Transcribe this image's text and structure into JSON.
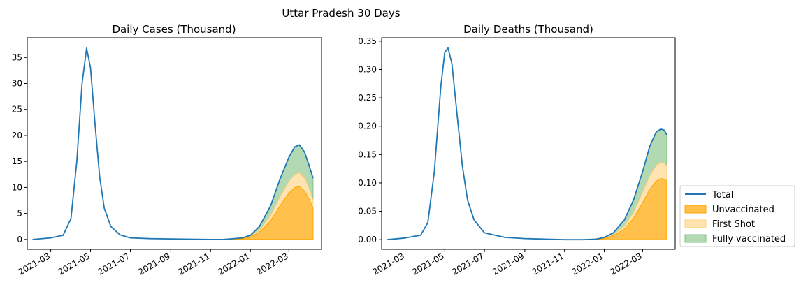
{
  "figure": {
    "suptitle": "Uttar Pradesh 30 Days"
  },
  "colors": {
    "total": "#1f77b4",
    "unvaccinated": "#ffa500",
    "first_shot": "#ffd27f",
    "fully_vaccinated": "#7fbf7f"
  },
  "legend": {
    "placement": "right, lower middle",
    "items": [
      {
        "key": "total",
        "label": "Total"
      },
      {
        "key": "unvaccinated",
        "label": "Unvaccinated"
      },
      {
        "key": "first_shot",
        "label": "First Shot"
      },
      {
        "key": "fully_vaccinated",
        "label": "Fully vaccinated"
      }
    ]
  },
  "chart_data": [
    {
      "type": "area",
      "title": "Daily Cases (Thousand)",
      "x_ticks": [
        "2021-03",
        "2021-05",
        "2021-07",
        "2021-09",
        "2021-11",
        "2022-01",
        "2022-03"
      ],
      "y_ticks": [
        "0",
        "5",
        "10",
        "15",
        "20",
        "25",
        "30",
        "35"
      ],
      "ylim": [
        -1.9,
        38.8
      ],
      "xlim": [
        "2021-01-24",
        "2022-04-20"
      ],
      "grid": false,
      "series": [
        {
          "key": "total",
          "x": [
            "2021-02-01",
            "2021-03-01",
            "2021-03-20",
            "2021-04-01",
            "2021-04-10",
            "2021-04-18",
            "2021-04-25",
            "2021-05-01",
            "2021-05-08",
            "2021-05-15",
            "2021-05-22",
            "2021-06-01",
            "2021-06-15",
            "2021-07-01",
            "2021-08-01",
            "2021-09-01",
            "2021-10-01",
            "2021-11-01",
            "2021-11-20",
            "2021-12-01",
            "2021-12-20",
            "2022-01-01",
            "2022-01-15",
            "2022-02-01",
            "2022-02-15",
            "2022-03-01",
            "2022-03-10",
            "2022-03-17",
            "2022-03-25",
            "2022-04-01",
            "2022-04-07"
          ],
          "y": [
            0,
            0.3,
            0.8,
            4,
            15,
            30,
            36.8,
            33,
            22,
            12,
            6,
            2.5,
            0.9,
            0.3,
            0.15,
            0.1,
            0.05,
            0,
            0,
            0.1,
            0.3,
            0.8,
            2.5,
            6.5,
            11.5,
            15.8,
            17.8,
            18.2,
            16.8,
            14.2,
            11.8
          ]
        },
        {
          "key": "unvaccinated",
          "x": [
            "2021-11-20",
            "2021-12-20",
            "2022-01-01",
            "2022-01-15",
            "2022-02-01",
            "2022-02-15",
            "2022-03-01",
            "2022-03-10",
            "2022-03-17",
            "2022-03-25",
            "2022-04-01",
            "2022-04-07"
          ],
          "y": [
            0,
            0.15,
            0.45,
            1.4,
            3.6,
            6.4,
            8.9,
            10.0,
            10.2,
            9.3,
            7.8,
            6.0
          ]
        },
        {
          "key": "first_shot",
          "x": [
            "2021-11-20",
            "2021-12-20",
            "2022-01-01",
            "2022-01-15",
            "2022-02-01",
            "2022-02-15",
            "2022-03-01",
            "2022-03-10",
            "2022-03-17",
            "2022-03-25",
            "2022-04-01",
            "2022-04-07"
          ],
          "y": [
            0,
            0.2,
            0.55,
            1.75,
            4.6,
            8.1,
            11.2,
            12.5,
            12.8,
            11.8,
            9.9,
            7.6
          ]
        },
        {
          "key": "fully_vaccinated",
          "x": [
            "2021-11-20",
            "2021-12-20",
            "2022-01-01",
            "2022-01-15",
            "2022-02-01",
            "2022-02-15",
            "2022-03-01",
            "2022-03-10",
            "2022-03-17",
            "2022-03-25",
            "2022-04-01",
            "2022-04-07"
          ],
          "y": [
            0,
            0.3,
            0.8,
            2.5,
            6.5,
            11.5,
            15.8,
            17.8,
            18.2,
            16.8,
            14.2,
            11.8
          ]
        }
      ]
    },
    {
      "type": "area",
      "title": "Daily Deaths (Thousand)",
      "x_ticks": [
        "2021-03",
        "2021-05",
        "2021-07",
        "2021-09",
        "2021-11",
        "2022-01",
        "2022-03"
      ],
      "y_ticks": [
        "0.00",
        "0.05",
        "0.10",
        "0.15",
        "0.20",
        "0.25",
        "0.30",
        "0.35"
      ],
      "ylim": [
        -0.017,
        0.356
      ],
      "xlim": [
        "2021-01-24",
        "2022-04-20"
      ],
      "grid": false,
      "series": [
        {
          "key": "total",
          "x": [
            "2021-02-01",
            "2021-03-01",
            "2021-03-25",
            "2021-04-05",
            "2021-04-15",
            "2021-04-25",
            "2021-05-01",
            "2021-05-06",
            "2021-05-12",
            "2021-05-20",
            "2021-05-28",
            "2021-06-05",
            "2021-06-15",
            "2021-07-01",
            "2021-08-01",
            "2021-09-01",
            "2021-10-01",
            "2021-11-01",
            "2021-11-20",
            "2021-12-01",
            "2021-12-20",
            "2022-01-01",
            "2022-01-15",
            "2022-02-01",
            "2022-02-15",
            "2022-03-01",
            "2022-03-12",
            "2022-03-22",
            "2022-03-29",
            "2022-04-03",
            "2022-04-07"
          ],
          "y": [
            0,
            0.003,
            0.008,
            0.03,
            0.12,
            0.27,
            0.33,
            0.338,
            0.31,
            0.22,
            0.13,
            0.07,
            0.035,
            0.012,
            0.004,
            0.002,
            0.001,
            0,
            0,
            0,
            0.001,
            0.004,
            0.012,
            0.035,
            0.07,
            0.12,
            0.165,
            0.19,
            0.195,
            0.193,
            0.185
          ]
        },
        {
          "key": "unvaccinated",
          "x": [
            "2021-11-20",
            "2021-12-20",
            "2022-01-01",
            "2022-01-15",
            "2022-02-01",
            "2022-02-15",
            "2022-03-01",
            "2022-03-12",
            "2022-03-22",
            "2022-03-29",
            "2022-04-03",
            "2022-04-07"
          ],
          "y": [
            0,
            0.0005,
            0.0022,
            0.0066,
            0.019,
            0.038,
            0.065,
            0.089,
            0.103,
            0.108,
            0.107,
            0.103
          ]
        },
        {
          "key": "first_shot",
          "x": [
            "2021-11-20",
            "2021-12-20",
            "2022-01-01",
            "2022-01-15",
            "2022-02-01",
            "2022-02-15",
            "2022-03-01",
            "2022-03-12",
            "2022-03-22",
            "2022-03-29",
            "2022-04-03",
            "2022-04-07"
          ],
          "y": [
            0,
            0.0007,
            0.0028,
            0.0083,
            0.024,
            0.048,
            0.083,
            0.113,
            0.131,
            0.136,
            0.135,
            0.13
          ]
        },
        {
          "key": "fully_vaccinated",
          "x": [
            "2021-11-20",
            "2021-12-20",
            "2022-01-01",
            "2022-01-15",
            "2022-02-01",
            "2022-02-15",
            "2022-03-01",
            "2022-03-12",
            "2022-03-22",
            "2022-03-29",
            "2022-04-03",
            "2022-04-07"
          ],
          "y": [
            0,
            0.001,
            0.004,
            0.012,
            0.035,
            0.07,
            0.12,
            0.165,
            0.19,
            0.195,
            0.193,
            0.185
          ]
        }
      ]
    }
  ]
}
